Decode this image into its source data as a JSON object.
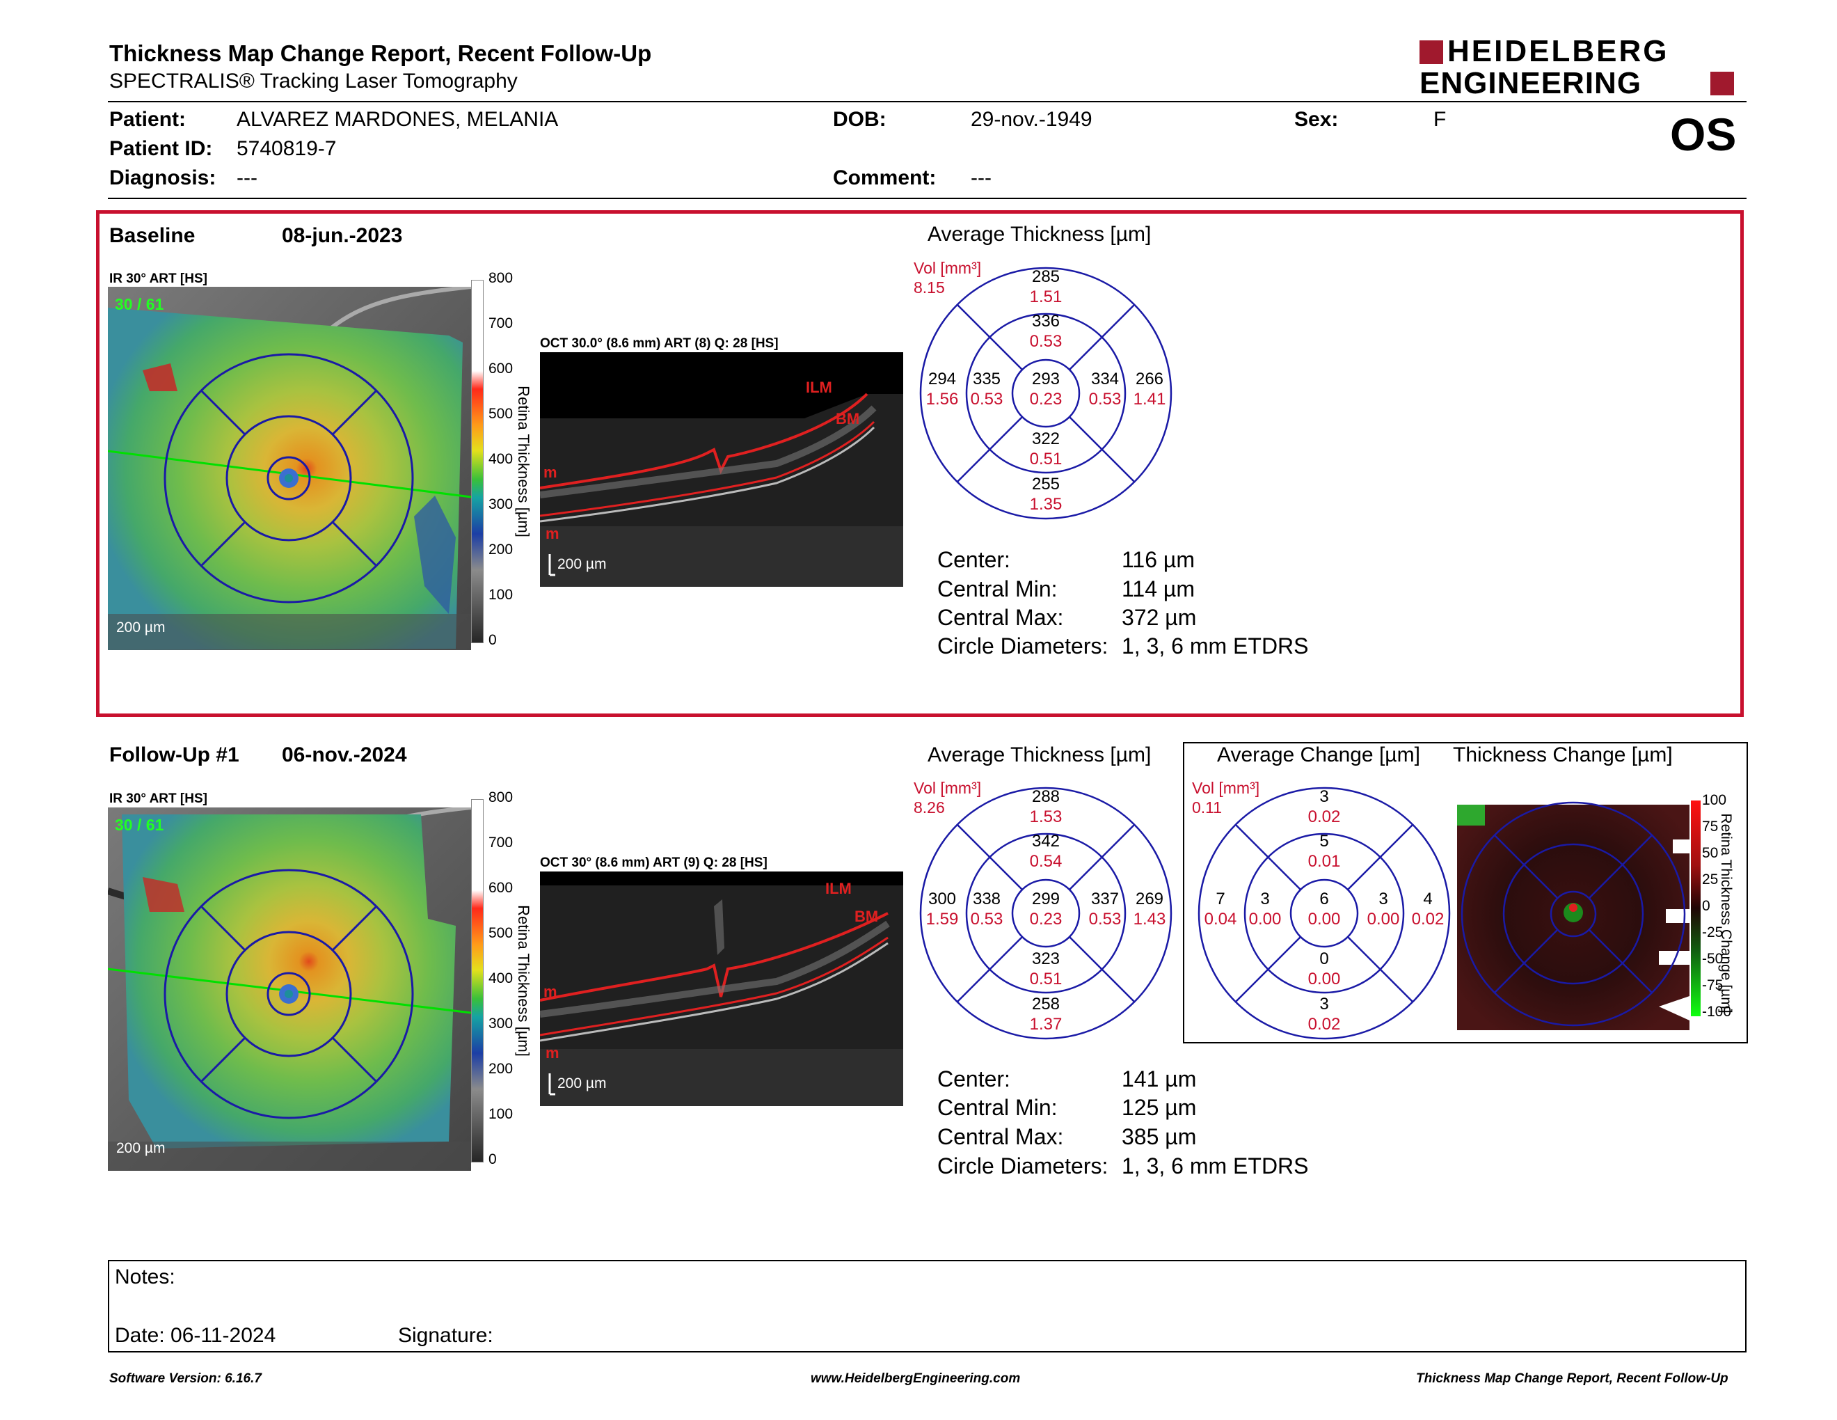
{
  "header": {
    "title": "Thickness Map Change Report, Recent Follow-Up",
    "subtitle": "SPECTRALIS® Tracking Laser Tomography",
    "logo_line1": "HEIDELBERG",
    "logo_line2": "ENGINEERING",
    "eye": "OS"
  },
  "patient": {
    "patient_label": "Patient:",
    "patient_value": "ALVAREZ MARDONES, MELANIA",
    "id_label": "Patient ID:",
    "id_value": "5740819-7",
    "diagnosis_label": "Diagnosis:",
    "diagnosis_value": "---",
    "dob_label": "DOB:",
    "dob_value": "29-nov.-1949",
    "comment_label": "Comment:",
    "comment_value": "---",
    "sex_label": "Sex:",
    "sex_value": "F"
  },
  "baseline": {
    "label": "Baseline",
    "date": "08-jun.-2023",
    "ir_label": "IR 30° ART [HS]",
    "ir_frames": "30 / 61",
    "ir_scalebar": "200 µm",
    "scale_ticks": [
      "800",
      "700",
      "600",
      "500",
      "400",
      "300",
      "200",
      "100",
      "0"
    ],
    "scale_title": "Retina Thickness [µm]",
    "oct_label": "OCT 30.0° (8.6 mm) ART (8) Q: 28 [HS]",
    "oct_ilm": "ILM",
    "oct_bm": "BM",
    "oct_m1": "m",
    "oct_m2": "m",
    "oct_scalebar": "200 µm",
    "avg_title": "Average Thickness [µm]",
    "vol_label": "Vol [mm³]",
    "vol_value": "8.15",
    "grid": {
      "outer_top": [
        "285",
        "1.51"
      ],
      "inner_top": [
        "336",
        "0.53"
      ],
      "outer_left": [
        "294",
        "1.56"
      ],
      "inner_left": [
        "335",
        "0.53"
      ],
      "center": [
        "293",
        "0.23"
      ],
      "inner_right": [
        "334",
        "0.53"
      ],
      "outer_right": [
        "266",
        "1.41"
      ],
      "inner_bottom": [
        "322",
        "0.51"
      ],
      "outer_bottom": [
        "255",
        "1.35"
      ]
    },
    "stats": [
      {
        "label": "Center:",
        "value": "116 µm"
      },
      {
        "label": "Central Min:",
        "value": "114 µm"
      },
      {
        "label": "Central Max:",
        "value": "372 µm"
      },
      {
        "label": "Circle Diameters:",
        "value": "1, 3, 6 mm ETDRS"
      }
    ]
  },
  "followup": {
    "label": "Follow-Up #1",
    "date": "06-nov.-2024",
    "ir_label": "IR 30° ART [HS]",
    "ir_frames": "30 / 61",
    "ir_scalebar": "200 µm",
    "scale_ticks": [
      "800",
      "700",
      "600",
      "500",
      "400",
      "300",
      "200",
      "100",
      "0"
    ],
    "scale_title": "Retina Thickness [µm]",
    "oct_label": "OCT 30° (8.6 mm) ART (9) Q: 28 [HS]",
    "oct_ilm": "ILM",
    "oct_bm": "BM",
    "oct_m1": "m",
    "oct_m2": "m",
    "oct_scalebar": "200 µm",
    "avg_title": "Average Thickness [µm]",
    "vol_label": "Vol [mm³]",
    "vol_value": "8.26",
    "grid": {
      "outer_top": [
        "288",
        "1.53"
      ],
      "inner_top": [
        "342",
        "0.54"
      ],
      "outer_left": [
        "300",
        "1.59"
      ],
      "inner_left": [
        "338",
        "0.53"
      ],
      "center": [
        "299",
        "0.23"
      ],
      "inner_right": [
        "337",
        "0.53"
      ],
      "outer_right": [
        "269",
        "1.43"
      ],
      "inner_bottom": [
        "323",
        "0.51"
      ],
      "outer_bottom": [
        "258",
        "1.37"
      ]
    },
    "stats": [
      {
        "label": "Center:",
        "value": "141 µm"
      },
      {
        "label": "Central Min:",
        "value": "125 µm"
      },
      {
        "label": "Central Max:",
        "value": "385 µm"
      },
      {
        "label": "Circle Diameters:",
        "value": "1, 3, 6 mm ETDRS"
      }
    ],
    "change_title": "Average Change [µm]",
    "change_vol_label": "Vol [mm³]",
    "change_vol_value": "0.11",
    "change_grid": {
      "outer_top": [
        "3",
        "0.02"
      ],
      "inner_top": [
        "5",
        "0.01"
      ],
      "outer_left": [
        "7",
        "0.04"
      ],
      "inner_left": [
        "3",
        "0.00"
      ],
      "center": [
        "6",
        "0.00"
      ],
      "inner_right": [
        "3",
        "0.00"
      ],
      "outer_right": [
        "4",
        "0.02"
      ],
      "inner_bottom": [
        "0",
        "0.00"
      ],
      "outer_bottom": [
        "3",
        "0.02"
      ]
    },
    "thick_change_title": "Thickness Change [µm]",
    "change_scale_ticks": [
      "100",
      "75",
      "50",
      "25",
      "0",
      "-25",
      "-50",
      "-75",
      "-100"
    ],
    "change_scale_title": "Retina Thickness Change [µm]"
  },
  "notes": {
    "notes_label": "Notes:",
    "date_label": "Date: 06-11-2024",
    "signature_label": "Signature:"
  },
  "footer": {
    "software": "Software Version: 6.16.7",
    "website": "www.HeidelbergEngineering.com",
    "report": "Thickness Map Change Report, Recent Follow-Up"
  },
  "colors": {
    "accent_red": "#c8102e",
    "circle_blue": "#1a1aa6",
    "logo_red": "#a0192d"
  }
}
